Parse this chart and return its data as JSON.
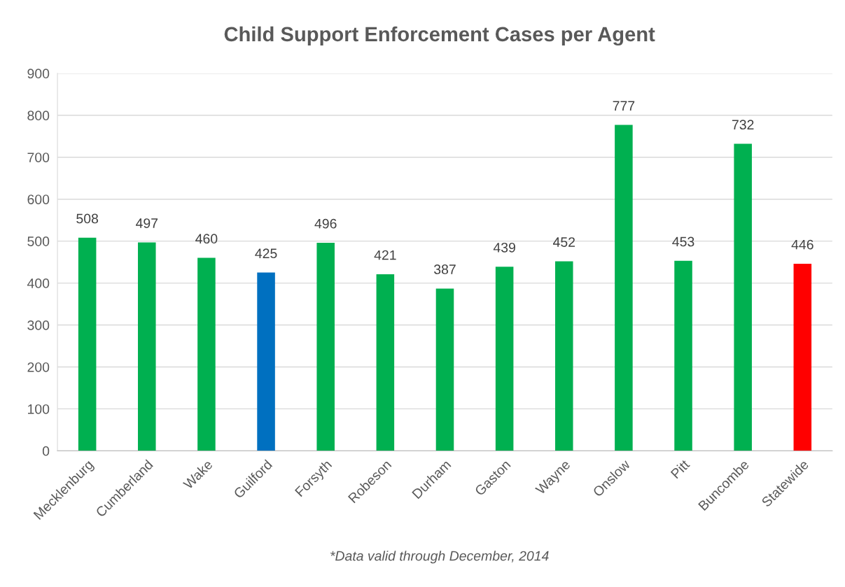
{
  "chart_data": {
    "type": "bar",
    "title": "Child Support Enforcement Cases per Agent",
    "categories": [
      "Mecklenburg",
      "Cumberland",
      "Wake",
      "Guilford",
      "Forsyth",
      "Robeson",
      "Durham",
      "Gaston",
      "Wayne",
      "Onslow",
      "Pitt",
      "Buncombe",
      "Statewide"
    ],
    "values": [
      508,
      497,
      460,
      425,
      496,
      421,
      387,
      439,
      452,
      777,
      453,
      732,
      446
    ],
    "colors": [
      "#00b050",
      "#00b050",
      "#00b050",
      "#0070c0",
      "#00b050",
      "#00b050",
      "#00b050",
      "#00b050",
      "#00b050",
      "#00b050",
      "#00b050",
      "#00b050",
      "#ff0000"
    ],
    "ylim": [
      0,
      900
    ],
    "yticks": [
      0,
      100,
      200,
      300,
      400,
      500,
      600,
      700,
      800,
      900
    ],
    "grid": "y",
    "data_labels": true,
    "annotations": [
      "*Data valid through December, 2014"
    ]
  }
}
